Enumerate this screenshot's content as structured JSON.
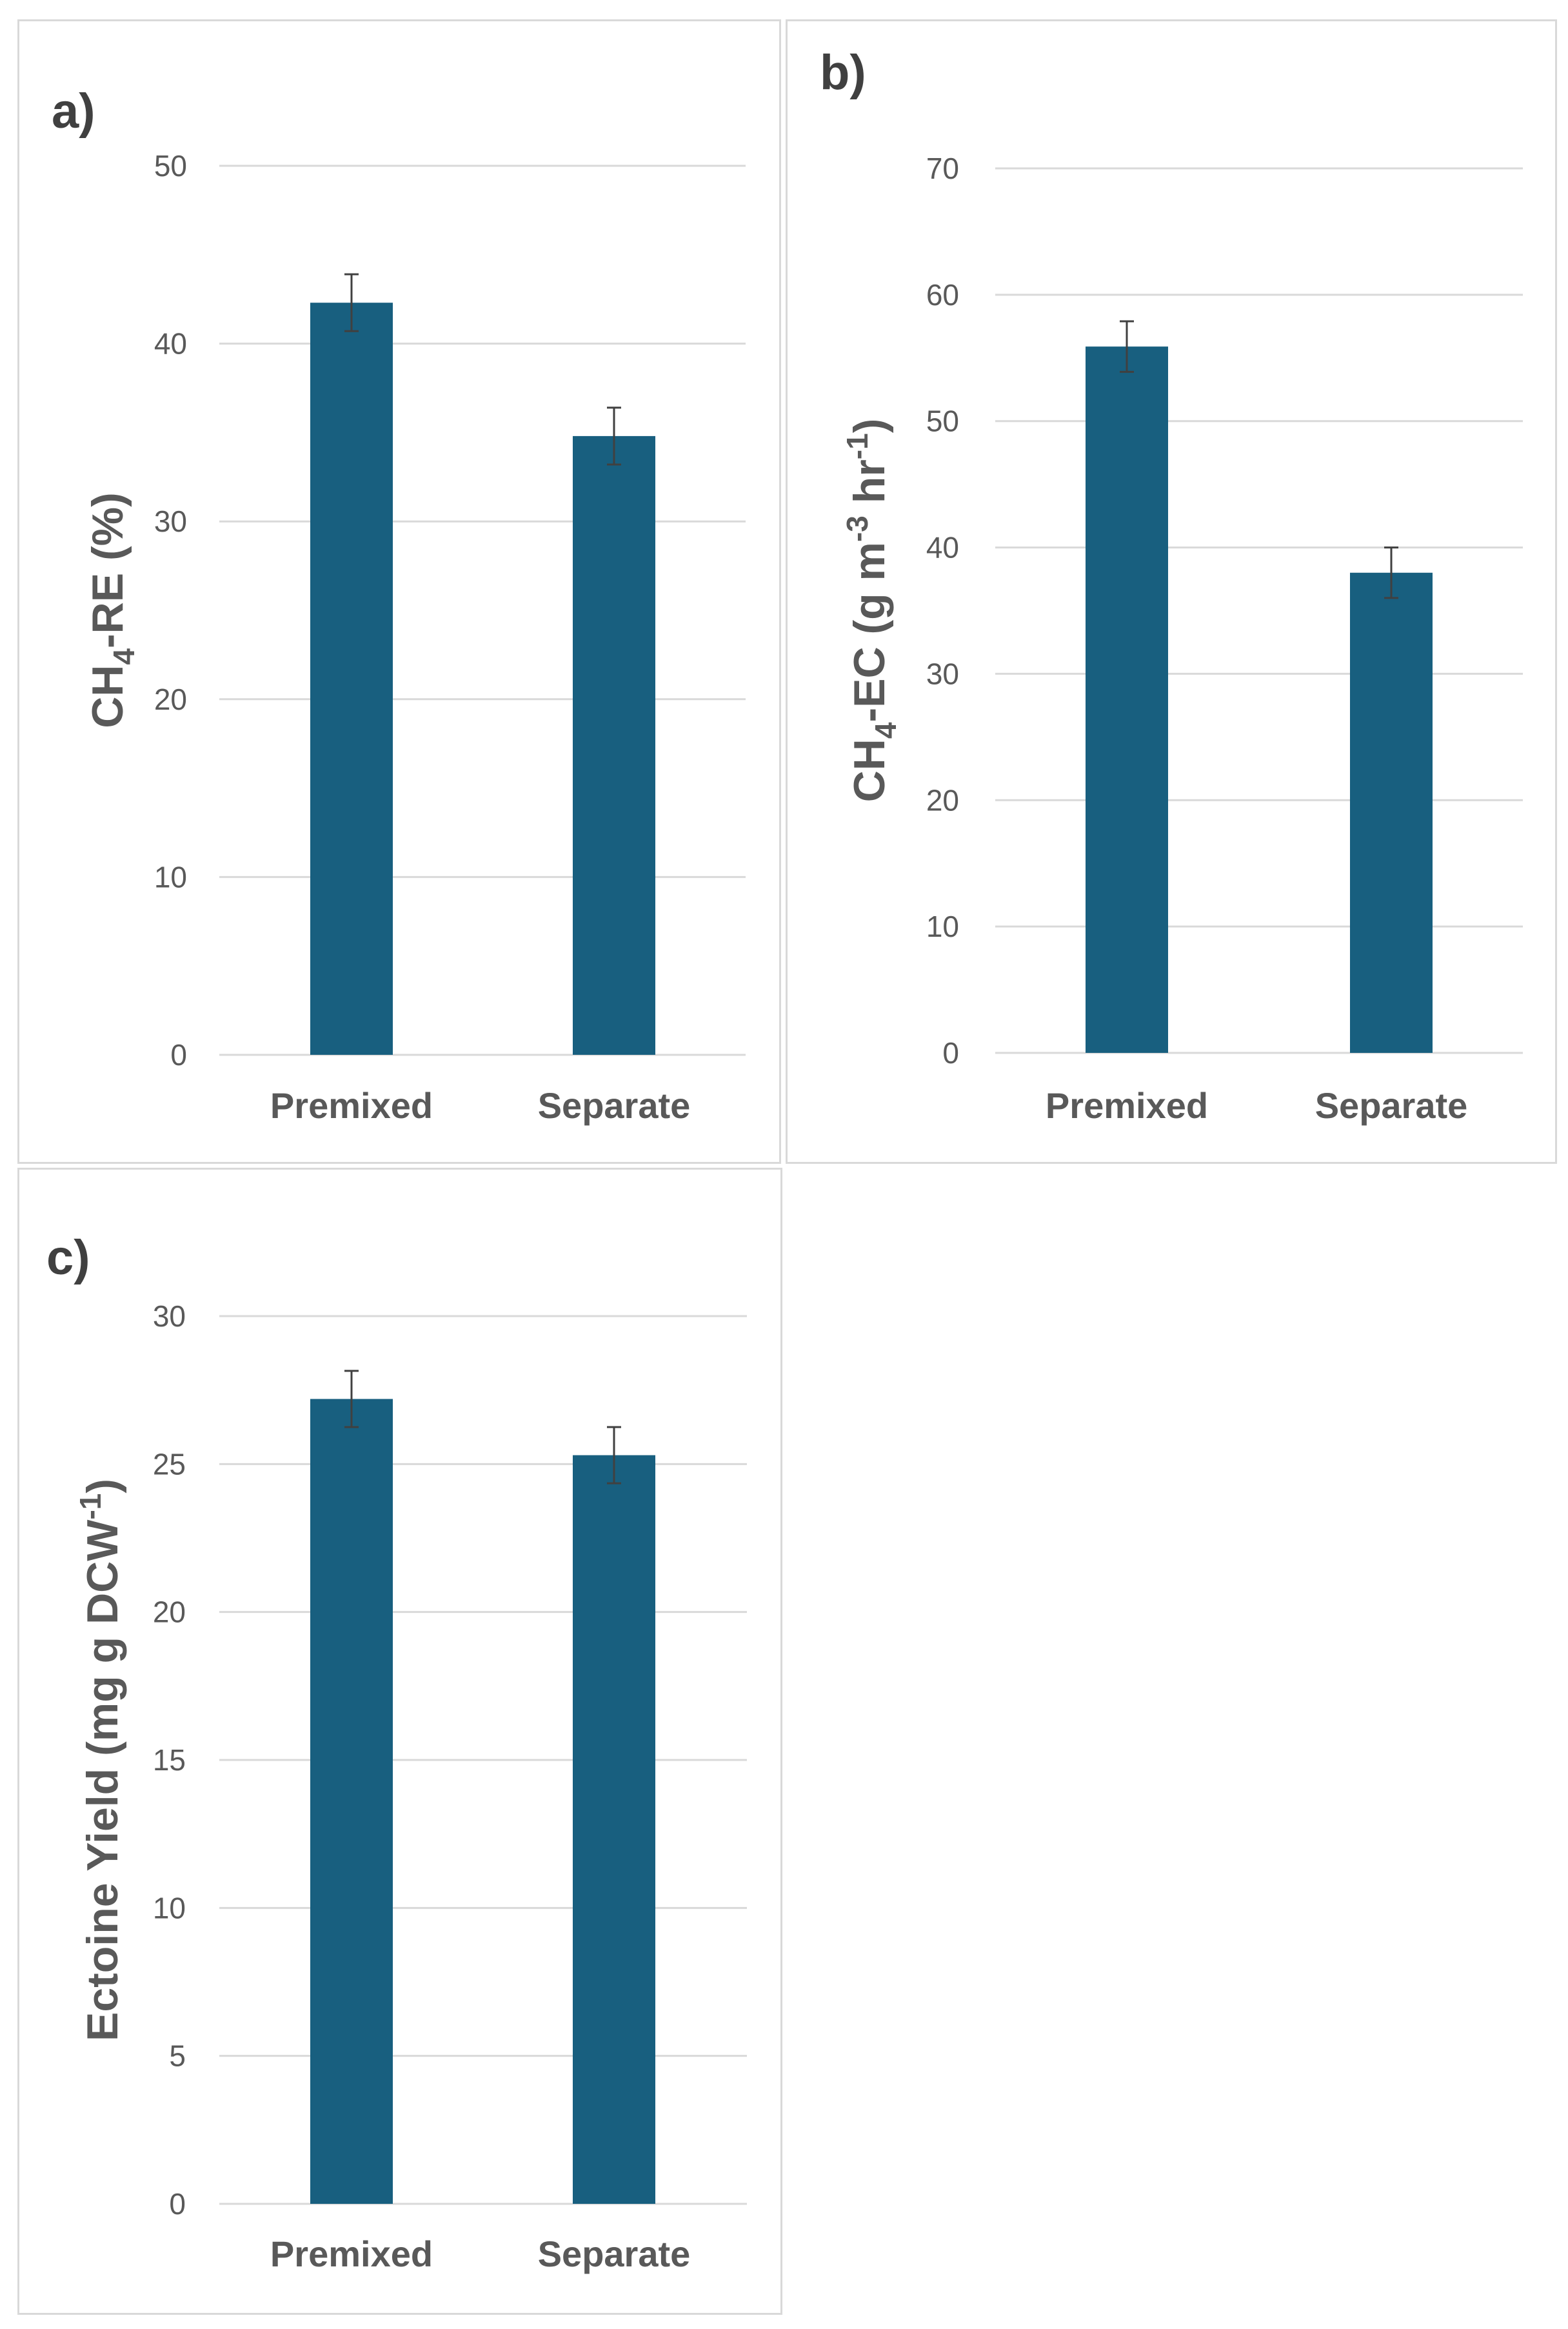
{
  "chart_data": [
    {
      "id": "a",
      "type": "bar",
      "panel_label": "a)",
      "categories": [
        "Premixed",
        "Separate"
      ],
      "values": [
        42.3,
        34.8
      ],
      "errors": [
        1.6,
        1.6
      ],
      "ylim": [
        0,
        50
      ],
      "yticks": [
        0,
        10,
        20,
        30,
        40,
        50
      ],
      "ylabel": {
        "pre": "CH",
        "sub": "4",
        "mid": "-RE (%)",
        "sup": "",
        "post": ""
      },
      "title": "",
      "xlabel": "",
      "grid": true,
      "color": "#185f7f"
    },
    {
      "id": "b",
      "type": "bar",
      "panel_label": "b)",
      "categories": [
        "Premixed",
        "Separate"
      ],
      "values": [
        55.9,
        38.0
      ],
      "errors": [
        2.0,
        2.0
      ],
      "ylim": [
        0,
        70
      ],
      "yticks": [
        0,
        10,
        20,
        30,
        40,
        50,
        60,
        70
      ],
      "ylabel": {
        "pre": "CH",
        "sub": "4",
        "mid": "-EC (g m",
        "sup": "-3",
        "mid2": " hr",
        "sup2": "-1",
        "post": ")"
      },
      "title": "",
      "xlabel": "",
      "grid": true,
      "color": "#185f7f"
    },
    {
      "id": "c",
      "type": "bar",
      "panel_label": "c)",
      "categories": [
        "Premixed",
        "Separate"
      ],
      "values": [
        27.2,
        25.3
      ],
      "errors": [
        0.95,
        0.95
      ],
      "ylim": [
        0,
        30
      ],
      "yticks": [
        0,
        5,
        10,
        15,
        20,
        25,
        30
      ],
      "ylabel": {
        "pre": "Ectoine Yield (mg g DCW",
        "sup": "-1",
        "post": ")"
      },
      "title": "",
      "xlabel": "",
      "grid": true,
      "color": "#185f7f"
    }
  ]
}
